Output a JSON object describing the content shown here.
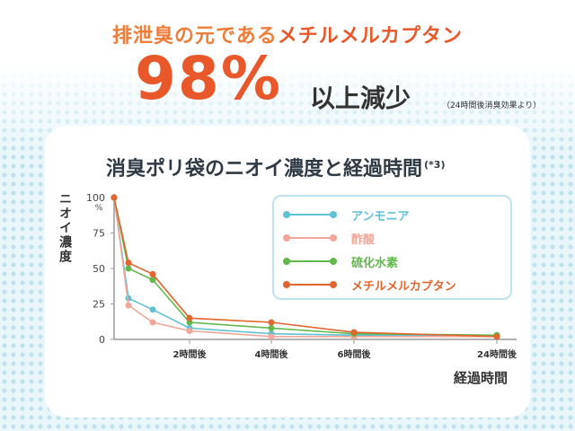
{
  "header": {
    "lead": "排泄臭の元である",
    "highlight": "メチルメルカプタン",
    "number": "98%",
    "suffix": "以上減少",
    "note": "（24時間後消臭効果より）"
  },
  "chart_title": "消臭ポリ袋のニオイ濃度と経過時間",
  "chart_title_ref": "(*3)",
  "chart_data": {
    "type": "line",
    "title": "消臭ポリ袋のニオイ濃度と経過時間",
    "ylabel": "ニオイ濃度",
    "xlabel": "経過時間",
    "y_unit": "%",
    "ylim": [
      0,
      100
    ],
    "y_ticks": [
      "100",
      "75",
      "50",
      "25",
      "0"
    ],
    "x": [
      0,
      0.5,
      1,
      2,
      4,
      6,
      24
    ],
    "x_tick_labels": [
      "2時間後",
      "4時間後",
      "6時間後",
      "24時間後"
    ],
    "series": [
      {
        "name": "アンモニア",
        "color": "#5fc1d4",
        "values": [
          100,
          29,
          21,
          8,
          4,
          3,
          3
        ]
      },
      {
        "name": "酢酸",
        "color": "#f0a799",
        "values": [
          100,
          24,
          12,
          6,
          2,
          2,
          2
        ]
      },
      {
        "name": "硫化水素",
        "color": "#62b84a",
        "values": [
          100,
          50,
          42,
          12,
          8,
          4,
          3
        ]
      },
      {
        "name": "メチルメルカプタン",
        "color": "#e0652e",
        "values": [
          100,
          54,
          46,
          15,
          12,
          5,
          2
        ]
      }
    ],
    "grid": false,
    "legend_position": "top-right"
  }
}
